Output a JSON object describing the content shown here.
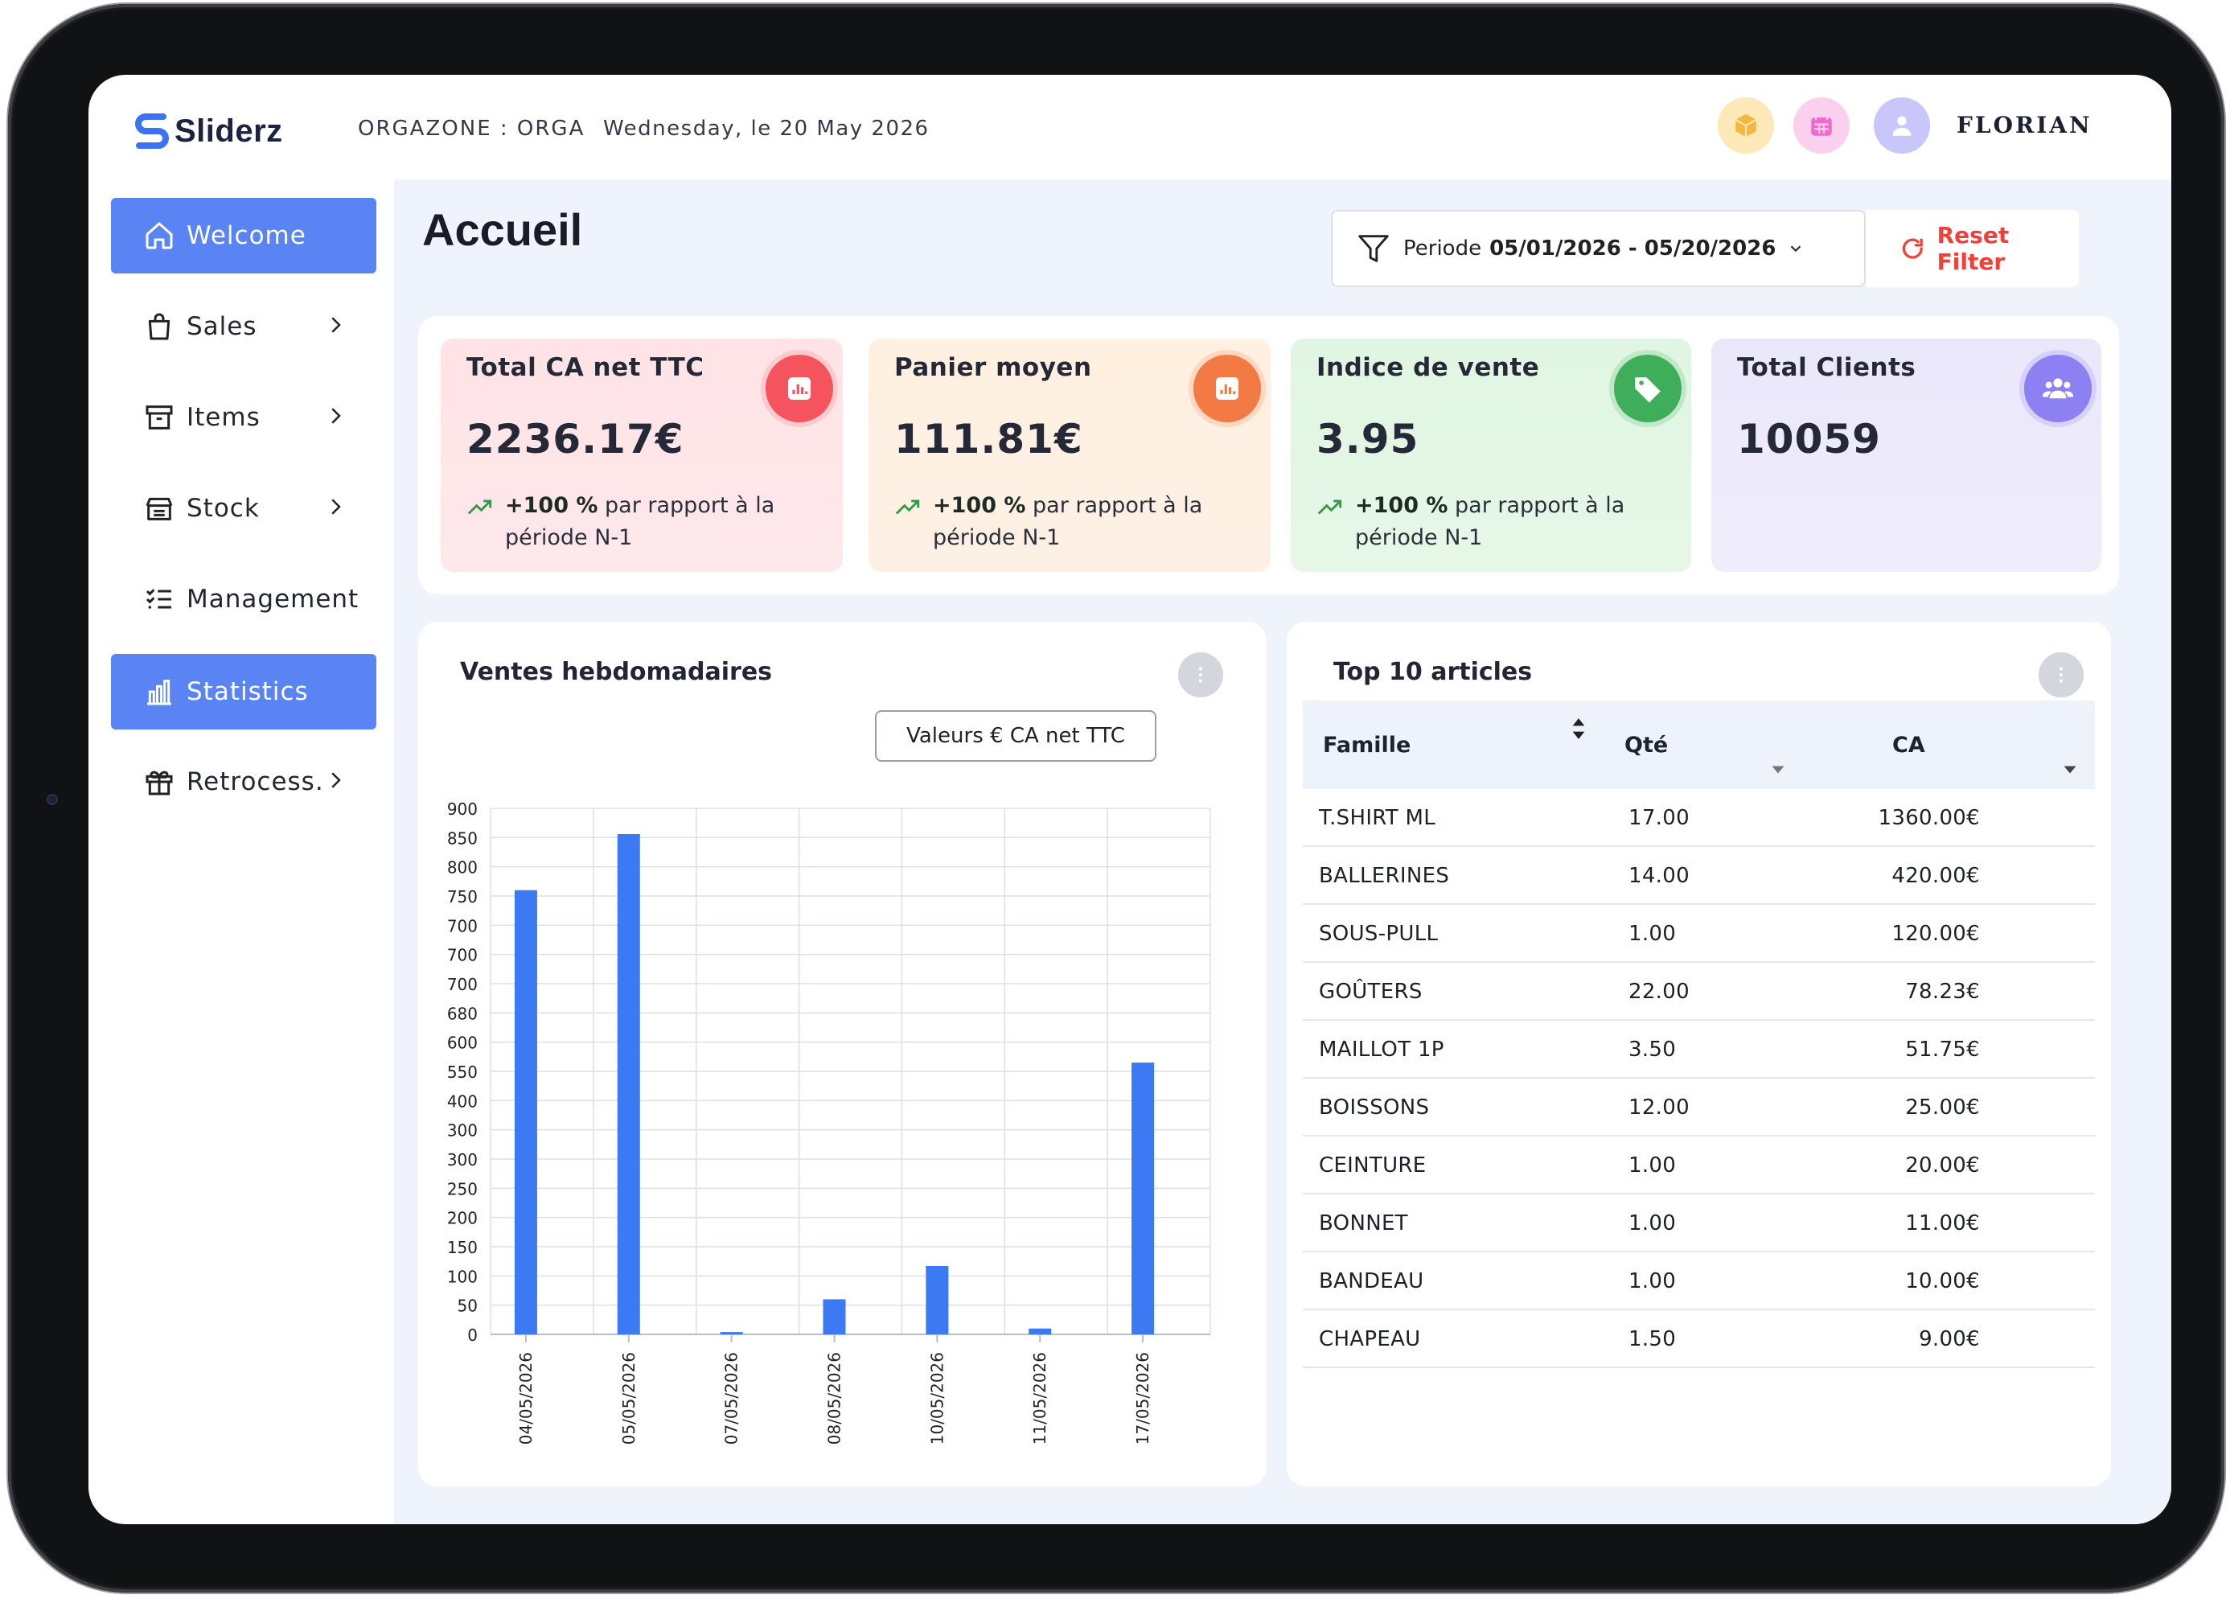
{
  "app": {
    "name": "Sliderz",
    "org": "ORGAZONE : ORGA",
    "date": "Wednesday, le 20 May 2026",
    "user": "FLORIAN"
  },
  "colors": {
    "accent": "#5a84f4",
    "kpi1": "#ffe3e6",
    "kpi2": "#fff0e0",
    "kpi3": "#e2f7e3",
    "kpi4": "#ece9fb",
    "bar": "#3b7af2",
    "reset": "#f0403a"
  },
  "sidebar": {
    "items": [
      {
        "label": "Welcome",
        "icon": "home-icon",
        "active": true
      },
      {
        "label": "Sales",
        "icon": "shopping-bag-icon",
        "chevron": true
      },
      {
        "label": "Items",
        "icon": "archive-box-icon",
        "chevron": true
      },
      {
        "label": "Stock",
        "icon": "stock-icon",
        "chevron": true
      },
      {
        "label": "Management",
        "icon": "checklist-icon"
      },
      {
        "label": "Statistics",
        "icon": "bar-chart-icon",
        "active": true
      },
      {
        "label": "Retrocess.",
        "icon": "gift-icon",
        "chevron": true
      }
    ]
  },
  "page": {
    "title": "Accueil",
    "filter": {
      "label": "Periode",
      "value": "05/01/2026 - 05/20/2026"
    },
    "reset_label": "Reset Filter"
  },
  "kpis": [
    {
      "title": "Total CA net TTC",
      "value": "2236.17€",
      "trend_value": "+100 %",
      "trend_text": "par rapport à la",
      "trend_text2": "période N-1",
      "icon": "report-icon"
    },
    {
      "title": "Panier moyen",
      "value": "111.81€",
      "trend_value": "+100 %",
      "trend_text": "par rapport à la",
      "trend_text2": "période N-1",
      "icon": "report-icon"
    },
    {
      "title": "Indice de vente",
      "value": "3.95",
      "trend_value": "+100 %",
      "trend_text": "par rapport à la",
      "trend_text2": "période N-1",
      "icon": "tag-icon"
    },
    {
      "title": "Total Clients",
      "value": "10059",
      "icon": "users-icon"
    }
  ],
  "weekly_chart": {
    "title": "Ventes hebdomadaires",
    "legend_button": "Valeurs € CA net TTC"
  },
  "chart_data": {
    "type": "bar",
    "title": "Ventes hebdomadaires",
    "series": [
      {
        "name": "Valeurs € CA net TTC",
        "values": [
          760,
          856,
          4,
          60,
          117,
          10,
          465
        ]
      }
    ],
    "categories": [
      "04/05/2026",
      "05/05/2026",
      "07/05/2026",
      "08/05/2026",
      "10/05/2026",
      "11/05/2026",
      "17/05/2026"
    ],
    "y_tick_labels": [
      "900",
      "850",
      "800",
      "750",
      "700",
      "700",
      "700",
      "680",
      "600",
      "550",
      "400",
      "300",
      "300",
      "250",
      "200",
      "150",
      "100",
      "50",
      "0"
    ],
    "ylim": [
      0,
      900
    ],
    "grid": true
  },
  "top_articles": {
    "title": "Top 10 articles",
    "columns": [
      "Famille",
      "Qté",
      "CA"
    ],
    "rows": [
      [
        "T.SHIRT ML",
        "17.00",
        "1360.00€"
      ],
      [
        "BALLERINES",
        "14.00",
        "420.00€"
      ],
      [
        "SOUS-PULL",
        "1.00",
        "120.00€"
      ],
      [
        "GOÛTERS",
        "22.00",
        "78.23€"
      ],
      [
        "MAILLOT 1P",
        "3.50",
        "51.75€"
      ],
      [
        "BOISSONS",
        "12.00",
        "25.00€"
      ],
      [
        "CEINTURE",
        "1.00",
        "20.00€"
      ],
      [
        "BONNET",
        "1.00",
        "11.00€"
      ],
      [
        "BANDEAU",
        "1.00",
        "10.00€"
      ],
      [
        "CHAPEAU",
        "1.50",
        "9.00€"
      ]
    ]
  }
}
